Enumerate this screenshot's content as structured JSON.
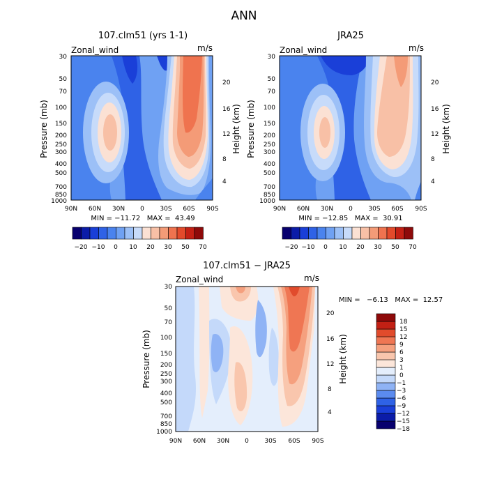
{
  "figure_title": "ANN",
  "colors": {
    "main_scale": [
      "#08006e",
      "#0b1ca8",
      "#1a3fd8",
      "#2f62e6",
      "#4a83ee",
      "#6fa1f3",
      "#9cc0f7",
      "#c7dbfa",
      "#fbe1d4",
      "#f8c0a6",
      "#f49b77",
      "#ef734f",
      "#e34a2b",
      "#c42014",
      "#8e0a0a"
    ],
    "diff_scale": [
      "#08006e",
      "#0b1ca8",
      "#1a3fd8",
      "#2f62e6",
      "#5b8bef",
      "#8fb3f5",
      "#c4d9fa",
      "#e4eefc",
      "#fce6da",
      "#f9c6ad",
      "#f5a07e",
      "#ef7653",
      "#e14b2c",
      "#c22014",
      "#8e0a0a"
    ]
  },
  "chart_data": [
    {
      "type": "heatmap",
      "title": "107.clm51 (yrs 1-1)",
      "field_label": "Zonal_wind",
      "units": "m/s",
      "ylabel": "Pressure (mb)",
      "ylabel_right": "Height (km)",
      "x_ticks": [
        "90N",
        "60N",
        "30N",
        "0",
        "30S",
        "60S",
        "90S"
      ],
      "y_ticks": [
        "30",
        "50",
        "70",
        "100",
        "150",
        "200",
        "250",
        "300",
        "400",
        "500",
        "700",
        "850",
        "1000"
      ],
      "height_ticks": [
        "20",
        "16",
        "12",
        "8",
        "4"
      ],
      "stats": "MIN = −11.72   MAX =  43.49",
      "colorbar_labels": [
        "−20",
        "−10",
        "0",
        "10",
        "20",
        "30",
        "50",
        "70"
      ]
    },
    {
      "type": "heatmap",
      "title": "JRA25",
      "field_label": "Zonal_wind",
      "units": "m/s",
      "ylabel": "Pressure (mb)",
      "ylabel_right": "Height (km)",
      "x_ticks": [
        "90N",
        "60N",
        "30N",
        "0",
        "30S",
        "60S",
        "90S"
      ],
      "y_ticks": [
        "30",
        "50",
        "70",
        "100",
        "150",
        "200",
        "250",
        "300",
        "400",
        "500",
        "700",
        "850",
        "1000"
      ],
      "height_ticks": [
        "20",
        "16",
        "12",
        "8",
        "4"
      ],
      "stats": "MIN = −12.85   MAX =  30.91",
      "colorbar_labels": [
        "−20",
        "−10",
        "0",
        "10",
        "20",
        "30",
        "50",
        "70"
      ]
    },
    {
      "type": "heatmap",
      "title": "107.clm51 − JRA25",
      "field_label": "Zonal_wind",
      "units": "m/s",
      "ylabel": "Pressure (mb)",
      "ylabel_right": "Height (km)",
      "x_ticks": [
        "90N",
        "60N",
        "30N",
        "0",
        "30S",
        "60S",
        "90S"
      ],
      "y_ticks": [
        "30",
        "50",
        "70",
        "100",
        "150",
        "200",
        "250",
        "300",
        "400",
        "500",
        "700",
        "850",
        "1000"
      ],
      "height_ticks": [
        "20",
        "16",
        "12",
        "8",
        "4"
      ],
      "stats": "MIN =   −6.13   MAX =  12.57",
      "colorbar_labels": [
        "18",
        "15",
        "12",
        "9",
        "6",
        "3",
        "1",
        "0",
        "−1",
        "−3",
        "−6",
        "−9",
        "−12",
        "−15",
        "−18"
      ]
    }
  ]
}
